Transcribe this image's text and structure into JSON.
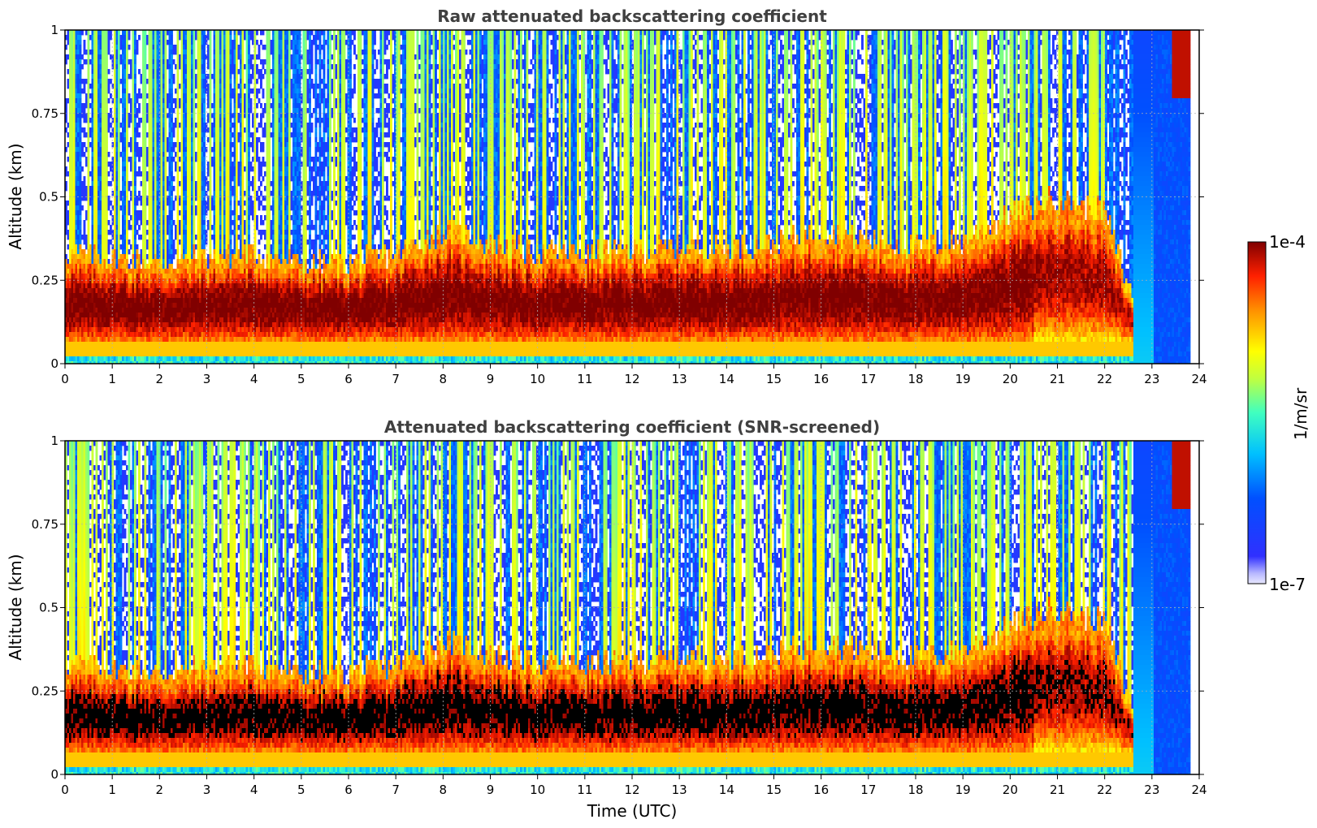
{
  "chart_data": [
    {
      "type": "heatmap",
      "title": "Raw attenuated backscattering coefficient",
      "xlabel": "",
      "ylabel": "Altitude (km)",
      "xlim": [
        0,
        24
      ],
      "ylim": [
        0,
        1
      ],
      "x_ticks": [
        "0",
        "1",
        "2",
        "3",
        "4",
        "5",
        "6",
        "7",
        "8",
        "9",
        "10",
        "11",
        "12",
        "13",
        "14",
        "15",
        "16",
        "17",
        "18",
        "19",
        "20",
        "21",
        "22",
        "23",
        "24"
      ],
      "y_ticks": [
        "0",
        "0.25",
        "0.5",
        "0.75",
        "1"
      ],
      "grid": true,
      "variant": "raw",
      "colorscale": "jet",
      "boundary_layer_top_km": [
        0.33,
        0.32,
        0.3,
        0.32,
        0.33,
        0.3,
        0.3,
        0.33,
        0.4,
        0.36,
        0.33,
        0.33,
        0.34,
        0.35,
        0.35,
        0.36,
        0.4,
        0.37,
        0.35,
        0.37,
        0.45,
        0.5,
        0.45,
        0
      ],
      "data_extent_hours": [
        0,
        23.8
      ]
    },
    {
      "type": "heatmap",
      "title": "Attenuated backscattering coefficient (SNR-screened)",
      "xlabel": "Time (UTC)",
      "ylabel": "Altitude (km)",
      "xlim": [
        0,
        24
      ],
      "ylim": [
        0,
        1
      ],
      "x_ticks": [
        "0",
        "1",
        "2",
        "3",
        "4",
        "5",
        "6",
        "7",
        "8",
        "9",
        "10",
        "11",
        "12",
        "13",
        "14",
        "15",
        "16",
        "17",
        "18",
        "19",
        "20",
        "21",
        "22",
        "23",
        "24"
      ],
      "y_ticks": [
        "0",
        "0.25",
        "0.5",
        "0.75",
        "1"
      ],
      "grid": true,
      "variant": "screened",
      "colorscale": "jet",
      "boundary_layer_top_km": [
        0.33,
        0.32,
        0.3,
        0.32,
        0.33,
        0.3,
        0.3,
        0.33,
        0.4,
        0.36,
        0.33,
        0.33,
        0.34,
        0.35,
        0.35,
        0.36,
        0.4,
        0.37,
        0.35,
        0.37,
        0.45,
        0.5,
        0.45,
        0
      ],
      "data_extent_hours": [
        0,
        23.8
      ]
    }
  ],
  "colorbar": {
    "label": "1/m/sr",
    "min_label": "1e-7",
    "max_label": "1e-4",
    "scale": "log",
    "range": [
      1e-07,
      0.0001
    ]
  }
}
